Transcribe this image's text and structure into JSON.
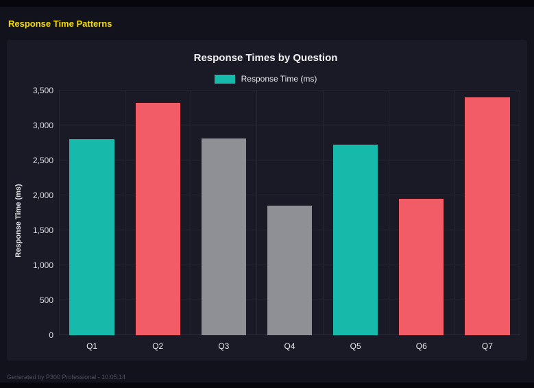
{
  "page": {
    "title": "Response Time Patterns",
    "footer": "Generated by P300 Professional - 10:05:14"
  },
  "chart": {
    "title": "Response Times by Question",
    "legend_label": "Response Time (ms)",
    "ylabel": "Response Time (ms)"
  },
  "colors": {
    "teal": "#17b9ab",
    "red": "#f15c66",
    "gray": "#8f8f96",
    "accent_yellow": "#f7dc00"
  },
  "chart_data": {
    "type": "bar",
    "title": "Response Times by Question",
    "categories": [
      "Q1",
      "Q2",
      "Q3",
      "Q4",
      "Q5",
      "Q6",
      "Q7"
    ],
    "values": [
      2800,
      3320,
      2810,
      1850,
      2730,
      1950,
      3400
    ],
    "bar_colors": [
      "#17b9ab",
      "#f15c66",
      "#8f8f96",
      "#8f8f96",
      "#17b9ab",
      "#f15c66",
      "#f15c66"
    ],
    "legend": [
      "Response Time (ms)"
    ],
    "legend_position": "top",
    "xlabel": "",
    "ylabel": "Response Time (ms)",
    "ylim": [
      0,
      3500
    ],
    "ytick_step": 500,
    "ytick_labels": [
      "0",
      "500",
      "1,000",
      "1,500",
      "2,000",
      "2,500",
      "3,000",
      "3,500"
    ],
    "grid": true
  }
}
